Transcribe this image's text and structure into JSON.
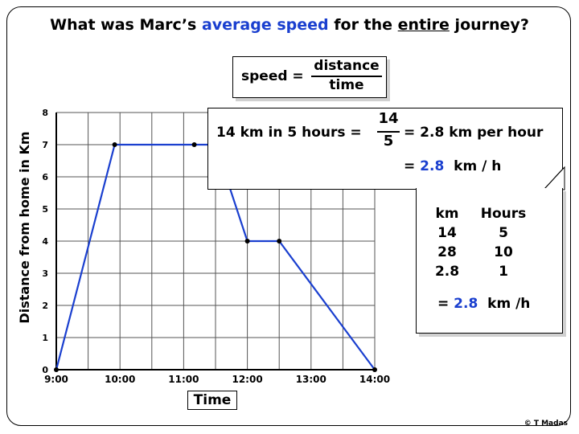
{
  "question": {
    "part1": "What was Marc’s ",
    "highlight": "average speed",
    "part2": " for the ",
    "underlined": "entire",
    "part3": " journey?"
  },
  "formula": {
    "lhs": "speed =",
    "numerator": "distance",
    "denominator": "time"
  },
  "callout": {
    "prefix": "14 km in 5 hours =",
    "fraction_num": "14",
    "fraction_den": "5",
    "result": "= 2.8  km per hour",
    "eq": "=",
    "value": "2.8",
    "unit": "km / h"
  },
  "ratio_table": {
    "headers": [
      "km",
      "Hours"
    ],
    "km": [
      "14",
      "28",
      "2.8"
    ],
    "hours": [
      "5",
      "10",
      "1"
    ],
    "result_eq": "=",
    "result_value": "2.8",
    "result_unit": "km /h"
  },
  "copyright": "© T Madas",
  "chart_data": {
    "type": "line",
    "title": "",
    "xlabel": "Time",
    "ylabel": "Distance from home in Km",
    "x_ticks": [
      "9:00",
      "10:00",
      "11:00",
      "12:00",
      "13:00",
      "14:00"
    ],
    "y_ticks": [
      "0",
      "1",
      "2",
      "3",
      "4",
      "5",
      "6",
      "7",
      "8"
    ],
    "xlim": [
      "9:00",
      "14:00"
    ],
    "ylim": [
      0,
      8
    ],
    "grid": true,
    "series": [
      {
        "color": "#1a3fcf",
        "points": [
          {
            "x": "9:00",
            "y": 0
          },
          {
            "x": "9:55",
            "y": 7
          },
          {
            "x": "11:10",
            "y": 7
          },
          {
            "x": "11:30",
            "y": 7
          },
          {
            "x": "12:00",
            "y": 4
          },
          {
            "x": "12:30",
            "y": 4
          },
          {
            "x": "14:00",
            "y": 0
          }
        ]
      }
    ]
  }
}
